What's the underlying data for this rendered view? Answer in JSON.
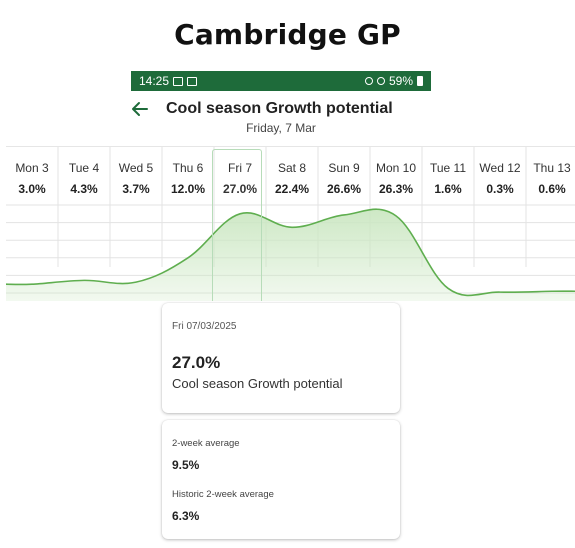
{
  "page": {
    "title": "Cambridge GP"
  },
  "statusbar": {
    "time": "14:25",
    "battery": "59%"
  },
  "header": {
    "title": "Cool season Growth potential",
    "subtitle": "Friday, 7 Mar"
  },
  "chart_data": {
    "type": "area",
    "categories": [
      "Mon 3",
      "Tue 4",
      "Wed 5",
      "Thu 6",
      "Fri 7",
      "Sat 8",
      "Sun 9",
      "Mon 10",
      "Tue 11",
      "Wed 12",
      "Thu 13"
    ],
    "value_labels": [
      "3.0%",
      "4.3%",
      "3.7%",
      "12.0%",
      "27.0%",
      "22.4%",
      "26.6%",
      "26.3%",
      "1.6%",
      "0.3%",
      "0.6%"
    ],
    "values": [
      3.0,
      4.3,
      3.7,
      12.0,
      27.0,
      22.4,
      26.6,
      26.3,
      1.6,
      0.3,
      0.6
    ],
    "selected_index": 4,
    "ylim": [
      0,
      30
    ],
    "grid": true,
    "colors": {
      "line": "#5fae4f",
      "fill": "#cbe7c2",
      "grid": "#e3e3e3",
      "selected": "#b7dcb9"
    }
  },
  "detail_card": {
    "date": "Fri 07/03/2025",
    "value": "27.0%",
    "metric": "Cool season Growth potential"
  },
  "stats_card": {
    "avg_label": "2-week average",
    "avg_value": "9.5%",
    "hist_label": "Historic 2-week average",
    "hist_value": "6.3%"
  },
  "colors": {
    "brand_green": "#1e6b3a",
    "accent_green": "#5fae4f"
  }
}
